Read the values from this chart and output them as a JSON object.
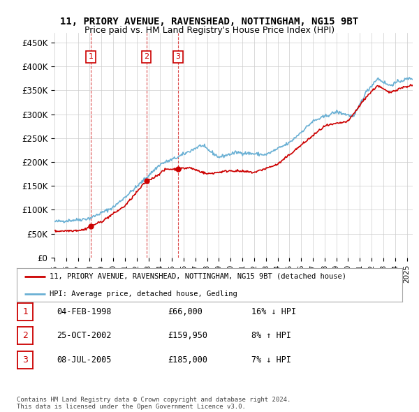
{
  "title_line1": "11, PRIORY AVENUE, RAVENSHEAD, NOTTINGHAM, NG15 9BT",
  "title_line2": "Price paid vs. HM Land Registry's House Price Index (HPI)",
  "ylabel_ticks": [
    "£0",
    "£50K",
    "£100K",
    "£150K",
    "£200K",
    "£250K",
    "£300K",
    "£350K",
    "£400K",
    "£450K"
  ],
  "ylabel_values": [
    0,
    50000,
    100000,
    150000,
    200000,
    250000,
    300000,
    350000,
    400000,
    450000
  ],
  "ylim": [
    0,
    470000
  ],
  "xlim_start": 1995.0,
  "xlim_end": 2025.5,
  "hpi_color": "#6ab0d4",
  "price_color": "#cc0000",
  "grid_color": "#cccccc",
  "bg_color": "#ffffff",
  "sale_points": [
    {
      "year": 1998.09,
      "price": 66000,
      "label": "1"
    },
    {
      "year": 2002.82,
      "price": 159950,
      "label": "2"
    },
    {
      "year": 2005.52,
      "price": 185000,
      "label": "3"
    }
  ],
  "legend_line1": "11, PRIORY AVENUE, RAVENSHEAD, NOTTINGHAM, NG15 9BT (detached house)",
  "legend_line2": "HPI: Average price, detached house, Gedling",
  "table_rows": [
    {
      "num": "1",
      "date": "04-FEB-1998",
      "price": "£66,000",
      "hpi": "16% ↓ HPI"
    },
    {
      "num": "2",
      "date": "25-OCT-2002",
      "price": "£159,950",
      "hpi": "8% ↑ HPI"
    },
    {
      "num": "3",
      "date": "08-JUL-2005",
      "price": "£185,000",
      "hpi": "7% ↓ HPI"
    }
  ],
  "footer": "Contains HM Land Registry data © Crown copyright and database right 2024.\nThis data is licensed under the Open Government Licence v3.0.",
  "xtick_years": [
    1995,
    1996,
    1997,
    1998,
    1999,
    2000,
    2001,
    2002,
    2003,
    2004,
    2005,
    2006,
    2007,
    2008,
    2009,
    2010,
    2011,
    2012,
    2013,
    2014,
    2015,
    2016,
    2017,
    2018,
    2019,
    2020,
    2021,
    2022,
    2023,
    2024,
    2025
  ]
}
